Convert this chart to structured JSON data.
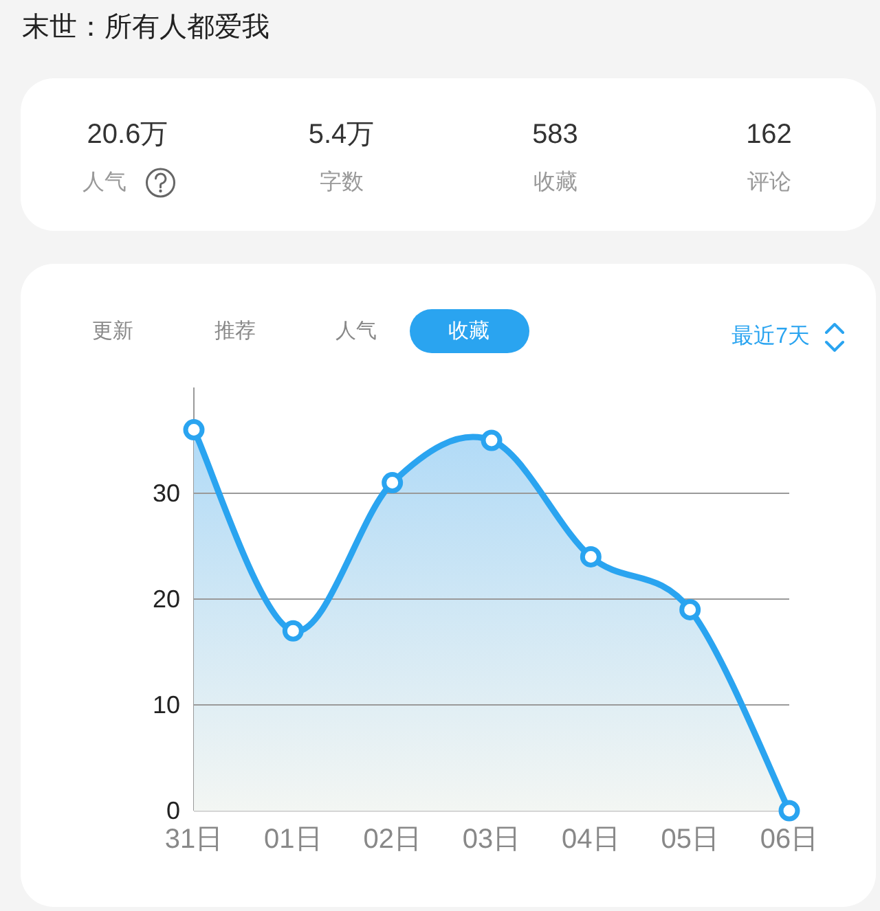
{
  "chart_data": [
    {
      "type": "other",
      "title": "末世：所有人都爱我",
      "annotations": [
        "20.6万",
        "人气",
        "5.4万",
        "字数",
        "583",
        "收藏",
        "162",
        "评论"
      ]
    },
    {
      "type": "area",
      "annotations": [
        "更新",
        "推荐",
        "人气",
        "收藏",
        "最近7天"
      ],
      "categories": [
        "31日",
        "01日",
        "02日",
        "03日",
        "04日",
        "05日",
        "06日"
      ],
      "values": [
        36,
        17,
        31,
        35,
        24,
        19,
        0
      ],
      "color": "#2aa4f0",
      "ylim": [
        0,
        40
      ],
      "yticks": [
        0,
        10,
        20,
        30
      ],
      "grid": "y",
      "marker": "circle"
    }
  ]
}
